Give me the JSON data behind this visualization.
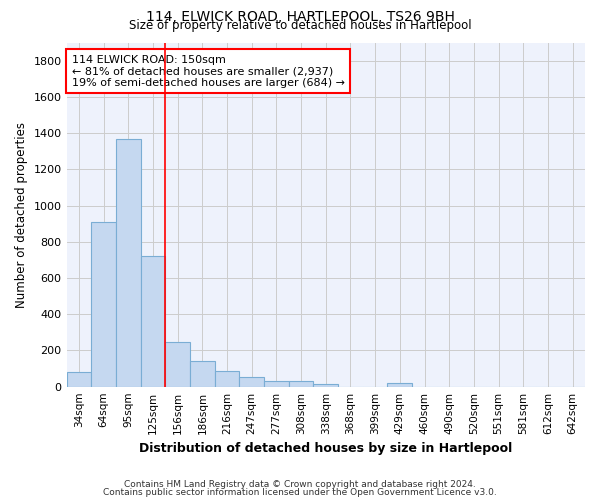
{
  "title1": "114, ELWICK ROAD, HARTLEPOOL, TS26 9BH",
  "title2": "Size of property relative to detached houses in Hartlepool",
  "xlabel": "Distribution of detached houses by size in Hartlepool",
  "ylabel": "Number of detached properties",
  "bar_labels": [
    "34sqm",
    "64sqm",
    "95sqm",
    "125sqm",
    "156sqm",
    "186sqm",
    "216sqm",
    "247sqm",
    "277sqm",
    "308sqm",
    "338sqm",
    "368sqm",
    "399sqm",
    "429sqm",
    "460sqm",
    "490sqm",
    "520sqm",
    "551sqm",
    "581sqm",
    "612sqm",
    "642sqm"
  ],
  "bar_values": [
    80,
    910,
    1370,
    720,
    245,
    140,
    85,
    55,
    30,
    30,
    15,
    0,
    0,
    20,
    0,
    0,
    0,
    0,
    0,
    0,
    0
  ],
  "bar_color": "#c5d8f0",
  "bar_edgecolor": "#7aadd4",
  "redline_x": 3.5,
  "annotation_line1": "114 ELWICK ROAD: 150sqm",
  "annotation_line2": "← 81% of detached houses are smaller (2,937)",
  "annotation_line3": "19% of semi-detached houses are larger (684) →",
  "ylim": [
    0,
    1900
  ],
  "yticks": [
    0,
    200,
    400,
    600,
    800,
    1000,
    1200,
    1400,
    1600,
    1800
  ],
  "grid_color": "#cccccc",
  "background_color": "#eef2fc",
  "footnote1": "Contains HM Land Registry data © Crown copyright and database right 2024.",
  "footnote2": "Contains public sector information licensed under the Open Government Licence v3.0."
}
